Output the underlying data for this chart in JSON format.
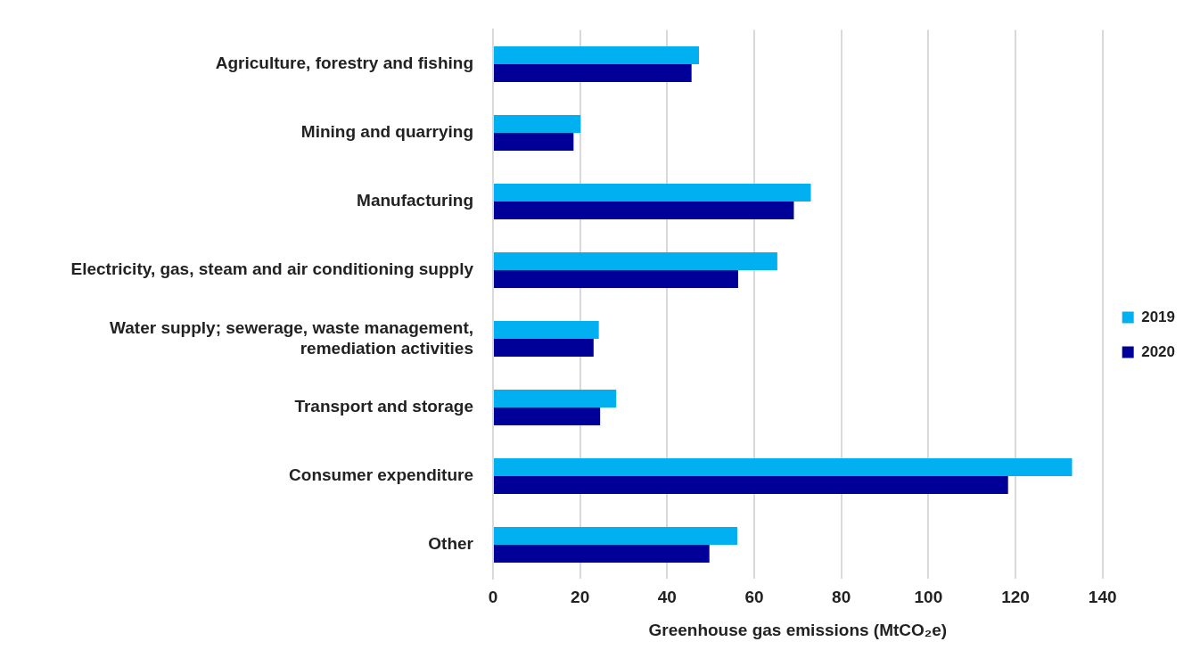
{
  "chart_data": {
    "type": "bar",
    "orientation": "horizontal",
    "categories": [
      "Agriculture, forestry and fishing",
      "Mining and quarrying",
      "Manufacturing",
      "Electricity, gas, steam and air conditioning supply",
      "Water supply; sewerage, waste management, remediation activities",
      "Transport and storage",
      "Consumer expenditure",
      "Other"
    ],
    "series": [
      {
        "name": "2019",
        "color": "#00b0f0",
        "values": [
          47.3,
          20.1,
          73.0,
          65.3,
          24.3,
          28.3,
          133.0,
          56.1
        ]
      },
      {
        "name": "2020",
        "color": "#000099",
        "values": [
          45.6,
          18.5,
          69.1,
          56.3,
          23.1,
          24.6,
          118.3,
          49.7
        ]
      }
    ],
    "xlabel": "Greenhouse gas emissions (MtCO₂e)",
    "xlim": [
      0,
      140
    ],
    "xticks": [
      0,
      20,
      40,
      60,
      80,
      100,
      120,
      140
    ],
    "grid": "x",
    "legend": "right"
  }
}
